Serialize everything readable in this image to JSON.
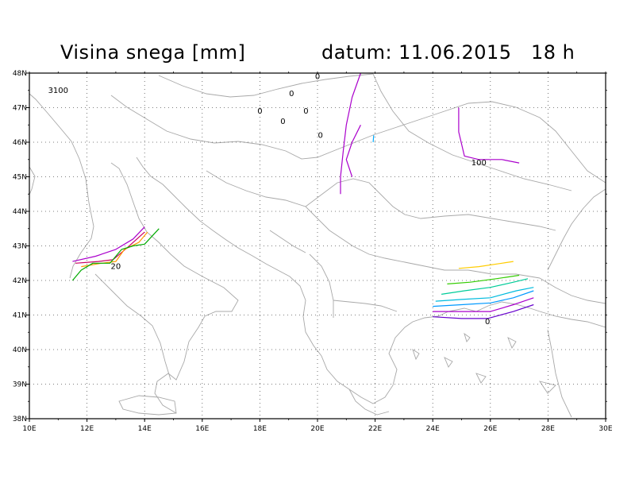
{
  "title": {
    "left": "Visina snega [mm]",
    "right": "datum: 11.06.2015   18 h"
  },
  "map": {
    "lon_range": [
      10,
      30
    ],
    "lat_range": [
      38,
      48
    ],
    "x_ticks": [
      "10E",
      "12E",
      "14E",
      "16E",
      "18E",
      "20E",
      "22E",
      "24E",
      "26E",
      "28E",
      "30E"
    ],
    "y_ticks": [
      "48N",
      "47N",
      "46N",
      "45N",
      "44N",
      "43N",
      "42N",
      "41N",
      "40N",
      "39N",
      "38N"
    ],
    "grid": true
  },
  "contour_labels": [
    {
      "text": "3100",
      "lon": 11.0,
      "lat": 47.5
    },
    {
      "text": "0",
      "lon": 20.0,
      "lat": 47.9
    },
    {
      "text": "0",
      "lon": 19.1,
      "lat": 47.4
    },
    {
      "text": "0",
      "lon": 18.0,
      "lat": 46.9
    },
    {
      "text": "0",
      "lon": 18.8,
      "lat": 46.6
    },
    {
      "text": "0",
      "lon": 19.6,
      "lat": 46.9
    },
    {
      "text": "0",
      "lon": 20.1,
      "lat": 46.2
    },
    {
      "text": "100",
      "lon": 25.6,
      "lat": 45.4
    },
    {
      "text": "20",
      "lon": 13.0,
      "lat": 42.4
    },
    {
      "text": "0",
      "lon": 25.9,
      "lat": 40.8
    }
  ],
  "contours": [
    {
      "color": "#aa00cc",
      "points": [
        [
          21.5,
          48.0
        ],
        [
          21.2,
          47.3
        ],
        [
          21.0,
          46.5
        ],
        [
          20.9,
          45.8
        ],
        [
          20.8,
          45.0
        ],
        [
          20.8,
          44.5
        ]
      ]
    },
    {
      "color": "#aa00cc",
      "points": [
        [
          21.5,
          46.5
        ],
        [
          21.2,
          46.0
        ],
        [
          21.0,
          45.5
        ],
        [
          21.2,
          45.0
        ]
      ]
    },
    {
      "color": "#00aaff",
      "points": [
        [
          21.95,
          46.2
        ],
        [
          21.93,
          46.0
        ]
      ]
    },
    {
      "color": "#aa00cc",
      "points": [
        [
          24.9,
          47.0
        ],
        [
          24.9,
          46.3
        ],
        [
          25.1,
          45.6
        ],
        [
          25.6,
          45.5
        ],
        [
          26.4,
          45.5
        ],
        [
          27.0,
          45.4
        ]
      ]
    },
    {
      "color": "#aa00cc",
      "points": [
        [
          11.5,
          42.55
        ],
        [
          12.3,
          42.7
        ],
        [
          13.0,
          42.9
        ],
        [
          13.6,
          43.2
        ],
        [
          14.0,
          43.55
        ]
      ]
    },
    {
      "color": "#cc0066",
      "points": [
        [
          11.6,
          42.5
        ],
        [
          12.4,
          42.55
        ],
        [
          12.9,
          42.6
        ],
        [
          13.4,
          42.95
        ],
        [
          14.0,
          43.4
        ]
      ]
    },
    {
      "color": "#ff9900",
      "points": [
        [
          11.8,
          42.4
        ],
        [
          12.5,
          42.5
        ],
        [
          13.0,
          42.55
        ],
        [
          13.3,
          42.9
        ],
        [
          13.8,
          43.1
        ],
        [
          14.1,
          43.4
        ]
      ]
    },
    {
      "color": "#00aa00",
      "points": [
        [
          11.5,
          42.0
        ],
        [
          11.8,
          42.3
        ],
        [
          12.2,
          42.5
        ],
        [
          12.8,
          42.5
        ],
        [
          13.2,
          42.9
        ],
        [
          13.6,
          43.0
        ],
        [
          14.0,
          43.05
        ],
        [
          14.5,
          43.5
        ]
      ]
    },
    {
      "color": "#ffcc00",
      "points": [
        [
          24.9,
          42.35
        ],
        [
          25.6,
          42.4
        ],
        [
          26.4,
          42.5
        ],
        [
          26.8,
          42.55
        ]
      ]
    },
    {
      "color": "#33cc00",
      "points": [
        [
          24.5,
          41.9
        ],
        [
          25.3,
          41.95
        ],
        [
          26.2,
          42.05
        ],
        [
          27.0,
          42.15
        ]
      ]
    },
    {
      "color": "#00cc99",
      "points": [
        [
          24.3,
          41.6
        ],
        [
          25.1,
          41.7
        ],
        [
          26.0,
          41.8
        ],
        [
          26.8,
          41.95
        ],
        [
          27.3,
          42.05
        ]
      ]
    },
    {
      "color": "#00bbdd",
      "points": [
        [
          24.1,
          41.4
        ],
        [
          25.0,
          41.45
        ],
        [
          26.0,
          41.5
        ],
        [
          26.9,
          41.7
        ],
        [
          27.5,
          41.8
        ]
      ]
    },
    {
      "color": "#0099ff",
      "points": [
        [
          24.0,
          41.25
        ],
        [
          25.0,
          41.3
        ],
        [
          26.0,
          41.35
        ],
        [
          26.8,
          41.5
        ],
        [
          27.5,
          41.7
        ]
      ]
    },
    {
      "color": "#aa00cc",
      "points": [
        [
          24.0,
          41.1
        ],
        [
          25.0,
          41.1
        ],
        [
          26.0,
          41.1
        ],
        [
          26.8,
          41.3
        ],
        [
          27.5,
          41.5
        ]
      ]
    },
    {
      "color": "#6600cc",
      "points": [
        [
          24.0,
          40.95
        ],
        [
          25.0,
          40.9
        ],
        [
          25.9,
          40.9
        ],
        [
          26.8,
          41.1
        ],
        [
          27.5,
          41.3
        ]
      ]
    }
  ]
}
